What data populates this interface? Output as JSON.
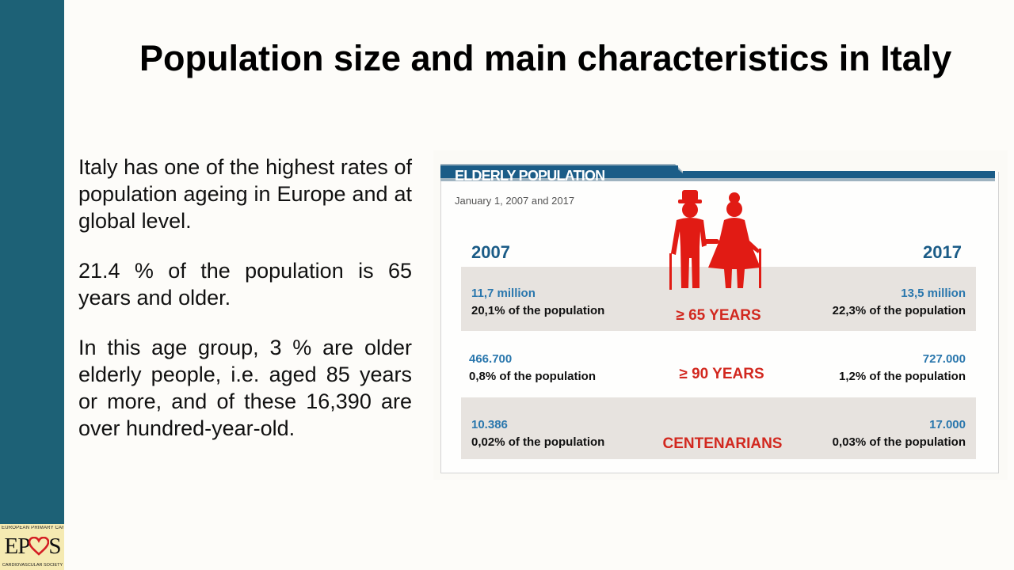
{
  "slide": {
    "title": "Population size and main characteristics in Italy",
    "paragraphs": [
      "Italy has one of the highest rates of population ageing in Europe and at global level.",
      "21.4 % of the population is 65 years and older.",
      "In this age group, 3 % are older elderly people, i.e. aged 85 years or more, and of these 16,390 are over hundred-year-old."
    ]
  },
  "logo": {
    "top_text": "EUROPEAN PRIMARY CARE",
    "main_left": "EP",
    "main_right": "S",
    "bottom_text": "CARDIOVASCULAR SOCIETY"
  },
  "infographic": {
    "header": "ELDERLY POPULATION",
    "date": "January 1, 2007 and 2017",
    "year_left": "2007",
    "year_right": "2017",
    "rows": [
      {
        "category": "≥ 65 YEARS",
        "left_value": "11,7 million",
        "left_pct": "20,1% of the population",
        "right_value": "13,5 million",
        "right_pct": "22,3% of the population"
      },
      {
        "category": "≥ 90 YEARS",
        "left_value": "466.700",
        "left_pct": "0,8% of the population",
        "right_value": "727.000",
        "right_pct": "1,2% of the population"
      },
      {
        "category": "CENTENARIANS",
        "left_value": "10.386",
        "left_pct": "0,02% of the population",
        "right_value": "17.000",
        "right_pct": "0,03% of the population"
      }
    ]
  },
  "colors": {
    "sidebar": "#1d6176",
    "header_bar": "#1b5c87",
    "category_red": "#d2281f",
    "value_blue": "#2a77ad",
    "row_grey": "#e7e3df",
    "people_red": "#e11b14"
  },
  "icons": [
    "elderly-couple-icon",
    "heart-icon"
  ]
}
